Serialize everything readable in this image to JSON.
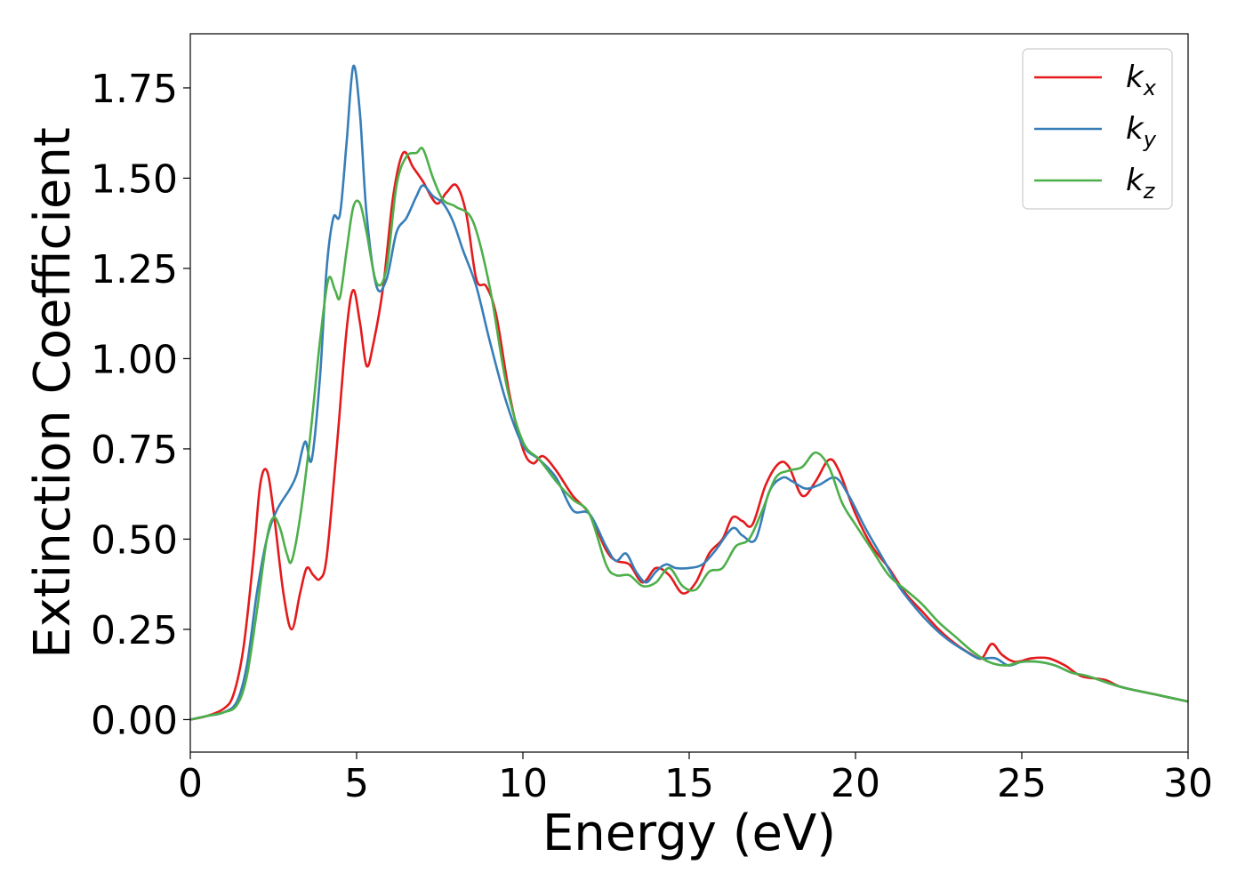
{
  "chart_data": {
    "type": "line",
    "title": "",
    "xlabel": "Energy (eV)",
    "ylabel": "Extinction Coefficient",
    "xlim": [
      0,
      30
    ],
    "ylim": [
      -0.09,
      1.9
    ],
    "xticks": [
      0,
      5,
      10,
      15,
      20,
      25,
      30
    ],
    "xtick_labels": [
      "0",
      "5",
      "10",
      "15",
      "20",
      "25",
      "30"
    ],
    "yticks": [
      0,
      0.25,
      0.5,
      0.75,
      1.0,
      1.25,
      1.5,
      1.75
    ],
    "ytick_labels": [
      "0.00",
      "0.25",
      "0.50",
      "0.75",
      "1.00",
      "1.25",
      "1.50",
      "1.75"
    ],
    "grid": false,
    "legend_position": "top-right",
    "series": [
      {
        "name": "k_x",
        "label_base": "k",
        "label_sub": "x",
        "color": "#e41a1c",
        "points": [
          [
            0,
            0
          ],
          [
            0.5,
            0.01
          ],
          [
            1.0,
            0.03
          ],
          [
            1.3,
            0.07
          ],
          [
            1.6,
            0.2
          ],
          [
            1.9,
            0.45
          ],
          [
            2.1,
            0.65
          ],
          [
            2.3,
            0.69
          ],
          [
            2.5,
            0.58
          ],
          [
            2.8,
            0.35
          ],
          [
            3.05,
            0.25
          ],
          [
            3.3,
            0.35
          ],
          [
            3.5,
            0.42
          ],
          [
            3.7,
            0.4
          ],
          [
            3.9,
            0.39
          ],
          [
            4.1,
            0.45
          ],
          [
            4.4,
            0.75
          ],
          [
            4.7,
            1.08
          ],
          [
            4.9,
            1.19
          ],
          [
            5.1,
            1.1
          ],
          [
            5.3,
            0.98
          ],
          [
            5.5,
            1.04
          ],
          [
            5.8,
            1.2
          ],
          [
            6.1,
            1.45
          ],
          [
            6.4,
            1.57
          ],
          [
            6.7,
            1.53
          ],
          [
            7.0,
            1.49
          ],
          [
            7.4,
            1.43
          ],
          [
            7.7,
            1.46
          ],
          [
            8.0,
            1.48
          ],
          [
            8.3,
            1.4
          ],
          [
            8.6,
            1.22
          ],
          [
            8.9,
            1.2
          ],
          [
            9.2,
            1.12
          ],
          [
            9.6,
            0.9
          ],
          [
            10.0,
            0.75
          ],
          [
            10.3,
            0.71
          ],
          [
            10.6,
            0.73
          ],
          [
            11.0,
            0.69
          ],
          [
            11.5,
            0.62
          ],
          [
            12.0,
            0.57
          ],
          [
            12.5,
            0.47
          ],
          [
            12.8,
            0.44
          ],
          [
            13.2,
            0.43
          ],
          [
            13.6,
            0.38
          ],
          [
            14.0,
            0.42
          ],
          [
            14.4,
            0.4
          ],
          [
            14.8,
            0.35
          ],
          [
            15.2,
            0.38
          ],
          [
            15.6,
            0.46
          ],
          [
            16.0,
            0.5
          ],
          [
            16.3,
            0.56
          ],
          [
            16.6,
            0.55
          ],
          [
            16.9,
            0.54
          ],
          [
            17.3,
            0.65
          ],
          [
            17.7,
            0.71
          ],
          [
            18.0,
            0.7
          ],
          [
            18.4,
            0.62
          ],
          [
            18.8,
            0.66
          ],
          [
            19.2,
            0.72
          ],
          [
            19.5,
            0.69
          ],
          [
            20.0,
            0.57
          ],
          [
            20.5,
            0.48
          ],
          [
            21.0,
            0.42
          ],
          [
            21.5,
            0.35
          ],
          [
            22.0,
            0.3
          ],
          [
            22.5,
            0.25
          ],
          [
            23.0,
            0.21
          ],
          [
            23.5,
            0.18
          ],
          [
            23.8,
            0.17
          ],
          [
            24.1,
            0.21
          ],
          [
            24.4,
            0.18
          ],
          [
            24.8,
            0.16
          ],
          [
            25.3,
            0.17
          ],
          [
            25.8,
            0.17
          ],
          [
            26.3,
            0.15
          ],
          [
            26.8,
            0.12
          ],
          [
            27.5,
            0.11
          ],
          [
            28.0,
            0.09
          ],
          [
            29.0,
            0.07
          ],
          [
            30.0,
            0.05
          ]
        ]
      },
      {
        "name": "k_y",
        "label_base": "k",
        "label_sub": "y",
        "color": "#377eb8",
        "points": [
          [
            0,
            0
          ],
          [
            0.5,
            0.01
          ],
          [
            1.0,
            0.02
          ],
          [
            1.4,
            0.05
          ],
          [
            1.7,
            0.15
          ],
          [
            2.0,
            0.35
          ],
          [
            2.3,
            0.5
          ],
          [
            2.6,
            0.58
          ],
          [
            3.0,
            0.64
          ],
          [
            3.2,
            0.68
          ],
          [
            3.45,
            0.77
          ],
          [
            3.65,
            0.72
          ],
          [
            3.9,
            0.95
          ],
          [
            4.1,
            1.25
          ],
          [
            4.3,
            1.39
          ],
          [
            4.5,
            1.4
          ],
          [
            4.7,
            1.6
          ],
          [
            4.9,
            1.81
          ],
          [
            5.1,
            1.68
          ],
          [
            5.3,
            1.4
          ],
          [
            5.6,
            1.2
          ],
          [
            5.9,
            1.22
          ],
          [
            6.2,
            1.35
          ],
          [
            6.5,
            1.39
          ],
          [
            6.8,
            1.45
          ],
          [
            7.0,
            1.48
          ],
          [
            7.3,
            1.45
          ],
          [
            7.6,
            1.43
          ],
          [
            7.9,
            1.38
          ],
          [
            8.2,
            1.3
          ],
          [
            8.6,
            1.2
          ],
          [
            9.0,
            1.05
          ],
          [
            9.5,
            0.88
          ],
          [
            10.0,
            0.76
          ],
          [
            10.5,
            0.72
          ],
          [
            11.0,
            0.67
          ],
          [
            11.5,
            0.58
          ],
          [
            12.0,
            0.57
          ],
          [
            12.5,
            0.48
          ],
          [
            12.8,
            0.44
          ],
          [
            13.1,
            0.46
          ],
          [
            13.4,
            0.41
          ],
          [
            13.7,
            0.38
          ],
          [
            14.0,
            0.41
          ],
          [
            14.3,
            0.43
          ],
          [
            14.6,
            0.42
          ],
          [
            15.0,
            0.42
          ],
          [
            15.4,
            0.43
          ],
          [
            15.8,
            0.47
          ],
          [
            16.3,
            0.53
          ],
          [
            16.6,
            0.51
          ],
          [
            17.0,
            0.5
          ],
          [
            17.4,
            0.63
          ],
          [
            17.8,
            0.67
          ],
          [
            18.1,
            0.66
          ],
          [
            18.5,
            0.64
          ],
          [
            18.9,
            0.65
          ],
          [
            19.4,
            0.67
          ],
          [
            19.8,
            0.62
          ],
          [
            20.3,
            0.53
          ],
          [
            20.8,
            0.45
          ],
          [
            21.3,
            0.37
          ],
          [
            21.8,
            0.31
          ],
          [
            22.3,
            0.26
          ],
          [
            22.8,
            0.22
          ],
          [
            23.3,
            0.19
          ],
          [
            23.7,
            0.17
          ],
          [
            24.2,
            0.17
          ],
          [
            24.6,
            0.15
          ],
          [
            25.0,
            0.16
          ],
          [
            25.5,
            0.16
          ],
          [
            26.0,
            0.15
          ],
          [
            26.5,
            0.13
          ],
          [
            27.0,
            0.12
          ],
          [
            28.0,
            0.09
          ],
          [
            29.0,
            0.07
          ],
          [
            30.0,
            0.05
          ]
        ]
      },
      {
        "name": "k_z",
        "label_base": "k",
        "label_sub": "z",
        "color": "#4daf4a",
        "points": [
          [
            0,
            0
          ],
          [
            0.5,
            0.01
          ],
          [
            1.0,
            0.02
          ],
          [
            1.4,
            0.04
          ],
          [
            1.7,
            0.12
          ],
          [
            2.0,
            0.3
          ],
          [
            2.3,
            0.5
          ],
          [
            2.5,
            0.56
          ],
          [
            2.7,
            0.53
          ],
          [
            2.9,
            0.46
          ],
          [
            3.05,
            0.44
          ],
          [
            3.3,
            0.56
          ],
          [
            3.6,
            0.78
          ],
          [
            3.9,
            1.05
          ],
          [
            4.15,
            1.22
          ],
          [
            4.35,
            1.19
          ],
          [
            4.5,
            1.17
          ],
          [
            4.7,
            1.3
          ],
          [
            4.9,
            1.42
          ],
          [
            5.1,
            1.43
          ],
          [
            5.3,
            1.35
          ],
          [
            5.6,
            1.21
          ],
          [
            5.9,
            1.25
          ],
          [
            6.2,
            1.48
          ],
          [
            6.5,
            1.56
          ],
          [
            6.8,
            1.57
          ],
          [
            7.0,
            1.58
          ],
          [
            7.3,
            1.5
          ],
          [
            7.6,
            1.44
          ],
          [
            8.0,
            1.42
          ],
          [
            8.5,
            1.38
          ],
          [
            9.0,
            1.2
          ],
          [
            9.5,
            0.93
          ],
          [
            10.0,
            0.77
          ],
          [
            10.5,
            0.72
          ],
          [
            11.0,
            0.66
          ],
          [
            11.5,
            0.61
          ],
          [
            12.0,
            0.57
          ],
          [
            12.5,
            0.43
          ],
          [
            12.8,
            0.4
          ],
          [
            13.2,
            0.4
          ],
          [
            13.6,
            0.37
          ],
          [
            14.0,
            0.38
          ],
          [
            14.4,
            0.42
          ],
          [
            14.8,
            0.37
          ],
          [
            15.2,
            0.36
          ],
          [
            15.6,
            0.41
          ],
          [
            16.0,
            0.42
          ],
          [
            16.4,
            0.48
          ],
          [
            16.8,
            0.5
          ],
          [
            17.2,
            0.58
          ],
          [
            17.6,
            0.67
          ],
          [
            18.0,
            0.69
          ],
          [
            18.4,
            0.7
          ],
          [
            18.8,
            0.74
          ],
          [
            19.2,
            0.7
          ],
          [
            19.6,
            0.6
          ],
          [
            20.0,
            0.54
          ],
          [
            20.5,
            0.47
          ],
          [
            21.0,
            0.4
          ],
          [
            21.5,
            0.36
          ],
          [
            22.0,
            0.32
          ],
          [
            22.5,
            0.27
          ],
          [
            23.0,
            0.23
          ],
          [
            23.5,
            0.19
          ],
          [
            24.0,
            0.16
          ],
          [
            24.5,
            0.15
          ],
          [
            25.0,
            0.16
          ],
          [
            25.5,
            0.16
          ],
          [
            26.0,
            0.15
          ],
          [
            26.5,
            0.13
          ],
          [
            27.0,
            0.12
          ],
          [
            28.0,
            0.09
          ],
          [
            29.0,
            0.07
          ],
          [
            30.0,
            0.05
          ]
        ]
      }
    ]
  }
}
